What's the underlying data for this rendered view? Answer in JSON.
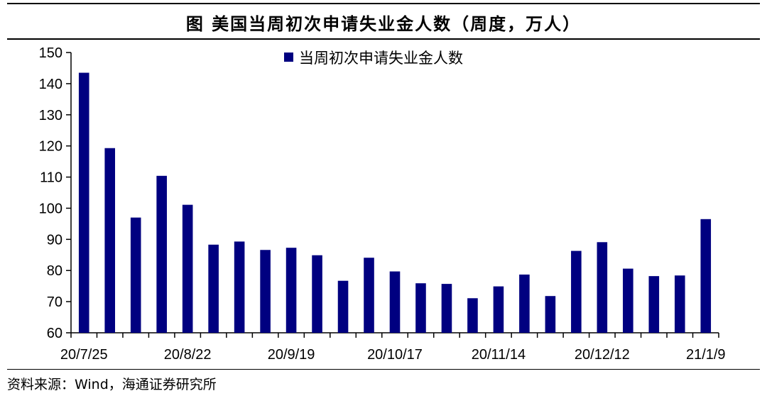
{
  "title": "图  美国当周初次申请失业金人数（周度，万人）",
  "source": "资料来源：Wind，海通证券研究所",
  "colors": {
    "bar": "#000080",
    "axis": "#000000"
  },
  "chart_data": {
    "type": "bar",
    "legend": {
      "label": "当周初次申请失业金人数",
      "position": "top-center"
    },
    "series": [
      {
        "name": "当周初次申请失业金人数",
        "values": [
          143.5,
          119.3,
          97.0,
          110.4,
          101.1,
          88.3,
          89.3,
          86.6,
          87.3,
          84.9,
          76.7,
          84.1,
          79.7,
          75.9,
          75.7,
          71.1,
          74.9,
          78.7,
          71.8,
          86.3,
          89.1,
          80.6,
          78.2,
          78.4,
          96.5
        ]
      }
    ],
    "x_tick_labels": [
      "20/7/25",
      "20/8/22",
      "20/9/19",
      "20/10/17",
      "20/11/14",
      "20/12/12",
      "21/1/9"
    ],
    "x_tick_every": 4,
    "ylim": [
      60,
      150
    ],
    "yticks": [
      60,
      70,
      80,
      90,
      100,
      110,
      120,
      130,
      140,
      150
    ],
    "grid": false
  }
}
